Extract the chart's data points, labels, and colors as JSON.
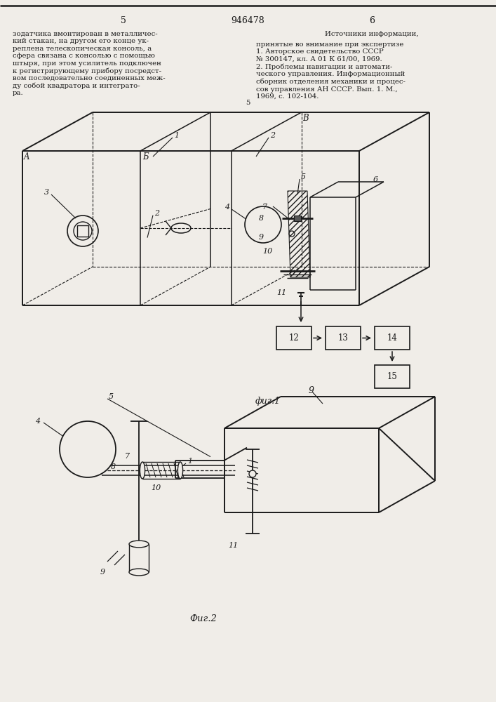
{
  "page_num_left": "5",
  "page_num_center": "946478",
  "page_num_right": "6",
  "text_left": "зодатчика вмонтирован в металличес-\nкий стакан, на другом его конце ук-\nреплена телескопическая консоль, а\nсфера связана с консолью с помощью\nштыря, при этом усилитель подключен\nк регистрирующему прибору посредст-\nвом последовательно соединенных меж-\nду собой квадратора и интеграто-\nра.",
  "text_right_title": "Источники информации,",
  "text_right": "принятые во внимание при экспертизе\n1. Авторское свидетельство СССР\n№ 300147, кл. А 01 К 61/00, 1969.\n2. Проблемы навигации и автомати-\nческого управления. Информационный\nсборник отделения механики и процес-\nсов управления АН СССР. Вып. 1. М.,\n1969, с. 102-104.",
  "fig1_label": "фиг.1",
  "fig2_label": "Фиг.2",
  "line_num_5": "5",
  "bg_color": "#f0ede8",
  "line_color": "#1a1a1a",
  "text_color": "#1a1a1a"
}
